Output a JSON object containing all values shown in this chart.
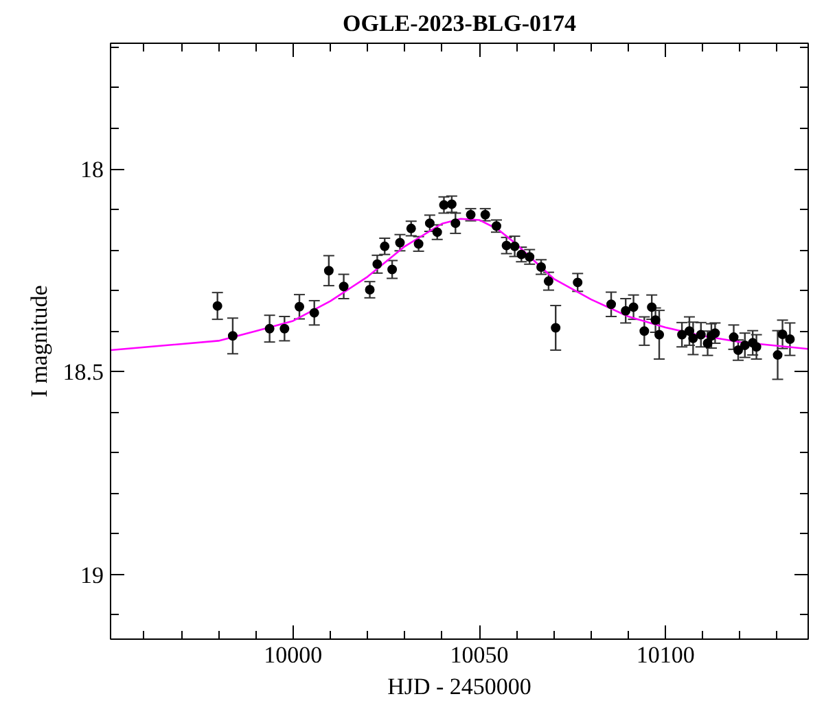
{
  "chart_data": {
    "type": "scatter",
    "title": "OGLE-2023-BLG-0174",
    "xlabel": "HJD - 2450000",
    "ylabel": "I magnitude",
    "xlim": [
      9951,
      10138.3
    ],
    "ylim": [
      19.16,
      17.69
    ],
    "xticks": [
      {
        "value": 9960,
        "label": null
      },
      {
        "value": 9970,
        "label": null
      },
      {
        "value": 9980,
        "label": null
      },
      {
        "value": 9990,
        "label": null
      },
      10000,
      {
        "value": 10010,
        "label": null
      },
      {
        "value": 10020,
        "label": null
      },
      {
        "value": 10030,
        "label": null
      },
      {
        "value": 10040,
        "label": null
      },
      10050,
      {
        "value": 10060,
        "label": null
      },
      {
        "value": 10070,
        "label": null
      },
      {
        "value": 10080,
        "label": null
      },
      {
        "value": 10090,
        "label": null
      },
      10100,
      {
        "value": 10110,
        "label": null
      },
      {
        "value": 10120,
        "label": null
      },
      {
        "value": 10130,
        "label": null
      }
    ],
    "yticks": [
      {
        "value": 17.7,
        "label": null
      },
      {
        "value": 17.8,
        "label": null
      },
      {
        "value": 17.9,
        "label": null
      },
      18,
      {
        "value": 18.1,
        "label": null
      },
      {
        "value": 18.2,
        "label": null
      },
      {
        "value": 18.3,
        "label": null
      },
      {
        "value": 18.4,
        "label": null
      },
      18.5,
      {
        "value": 18.6,
        "label": null
      },
      {
        "value": 18.7,
        "label": null
      },
      {
        "value": 18.8,
        "label": null
      },
      {
        "value": 18.9,
        "label": null
      },
      19,
      {
        "value": 19.1,
        "label": null
      }
    ],
    "grid": false,
    "series": [
      {
        "marker": "circle",
        "color": "#000000",
        "x": [
          9979.7,
          9983.8,
          9993.7,
          9997.7,
          10001.7,
          10005.7,
          10009.6,
          10013.6,
          10020.6,
          10022.6,
          10024.6,
          10026.6,
          10028.7,
          10031.7,
          10033.7,
          10036.7,
          10038.7,
          10040.5,
          10042.6,
          10043.6,
          10047.7,
          10051.6,
          10054.6,
          10057.3,
          10059.5,
          10061.3,
          10063.5,
          10066.6,
          10068.6,
          10070.5,
          10076.4,
          10085.4,
          10089.3,
          10091.4,
          10094.3,
          10096.3,
          10097.3,
          10098.3,
          10104.4,
          10106.4,
          10107.4,
          10109.5,
          10111.3,
          10112.3,
          10113.3,
          10118.3,
          10119.5,
          10121.3,
          10123.4,
          10124.4,
          10130.1,
          10131.4,
          10133.4
        ],
        "values": [
          18.338,
          18.412,
          18.394,
          18.394,
          18.34,
          18.355,
          18.251,
          18.29,
          18.298,
          18.235,
          18.191,
          18.248,
          18.182,
          18.147,
          18.185,
          18.134,
          18.156,
          18.089,
          18.087,
          18.134,
          18.113,
          18.113,
          18.141,
          18.189,
          18.191,
          18.211,
          18.217,
          18.242,
          18.277,
          18.392,
          18.28,
          18.334,
          18.35,
          18.341,
          18.4,
          18.341,
          18.373,
          18.409,
          18.409,
          18.4,
          18.418,
          18.409,
          18.43,
          18.412,
          18.405,
          18.415,
          18.447,
          18.435,
          18.429,
          18.439,
          18.459,
          18.408,
          18.42
        ],
        "errors": [
          0.033,
          0.044,
          0.033,
          0.03,
          0.03,
          0.03,
          0.037,
          0.03,
          0.02,
          0.022,
          0.02,
          0.022,
          0.02,
          0.018,
          0.018,
          0.02,
          0.018,
          0.02,
          0.02,
          0.025,
          0.015,
          0.015,
          0.015,
          0.02,
          0.025,
          0.018,
          0.018,
          0.018,
          0.022,
          0.055,
          0.022,
          0.03,
          0.03,
          0.03,
          0.035,
          0.03,
          0.03,
          0.06,
          0.03,
          0.035,
          0.04,
          0.03,
          0.03,
          0.03,
          0.025,
          0.03,
          0.025,
          0.03,
          0.03,
          0.03,
          0.06,
          0.035,
          0.04
        ]
      },
      {
        "type": "line",
        "color": "#ff00ff",
        "x": [
          9951,
          9980,
          9990,
          10000,
          10010,
          10020,
          10030,
          10040,
          10045,
          10050,
          10055,
          10060,
          10065,
          10070,
          10080,
          10090,
          10100,
          10110,
          10120,
          10138.3
        ],
        "values": [
          18.447,
          18.424,
          18.4,
          18.375,
          18.326,
          18.266,
          18.191,
          18.135,
          18.123,
          18.126,
          18.149,
          18.186,
          18.229,
          18.271,
          18.322,
          18.364,
          18.391,
          18.412,
          18.427,
          18.444
        ]
      }
    ]
  }
}
